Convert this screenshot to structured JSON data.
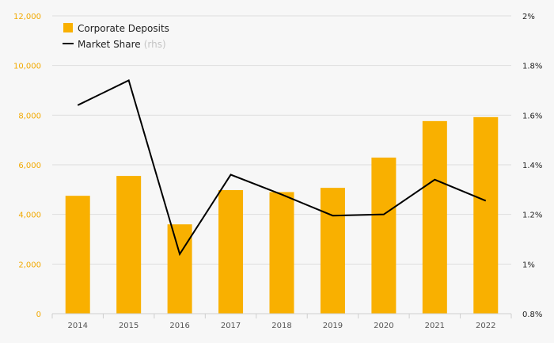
{
  "chart_data": {
    "type": "bar",
    "categories": [
      "2014",
      "2015",
      "2016",
      "2017",
      "2018",
      "2019",
      "2020",
      "2021",
      "2022"
    ],
    "series": [
      {
        "name": "Corporate Deposits",
        "kind": "bar",
        "axis": "left",
        "color": "#f9b000",
        "values": [
          4750,
          5550,
          3600,
          4980,
          4900,
          5070,
          6290,
          7760,
          7920
        ]
      },
      {
        "name": "Market Share",
        "kind": "line",
        "axis": "right",
        "color": "#000000",
        "values": [
          1.64,
          1.74,
          1.04,
          1.36,
          1.28,
          1.195,
          1.2,
          1.34,
          1.255
        ]
      }
    ],
    "legend": {
      "position": "top-left",
      "items": [
        {
          "label": "Corporate Deposits",
          "suffix": ""
        },
        {
          "label": "Market Share",
          "suffix": "(rhs)"
        }
      ]
    },
    "y_left": {
      "ylim": [
        0,
        12000
      ],
      "ticks": [
        0,
        2000,
        4000,
        6000,
        8000,
        10000,
        12000
      ],
      "tick_labels": [
        "0",
        "2,000",
        "4,000",
        "6,000",
        "8,000",
        "10,000",
        "12,000"
      ],
      "color": "#f2a900"
    },
    "y_right": {
      "ylim": [
        0.8,
        2.0
      ],
      "ticks": [
        0.8,
        1.0,
        1.2,
        1.4,
        1.6,
        1.8,
        2.0
      ],
      "tick_labels": [
        "0.8%",
        "1%",
        "1.2%",
        "1.4%",
        "1.6%",
        "1.8%",
        "2%"
      ],
      "color": "#222222"
    },
    "grid": true
  }
}
